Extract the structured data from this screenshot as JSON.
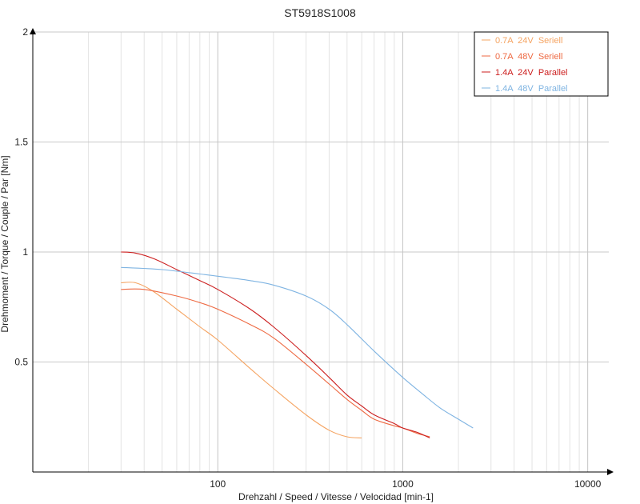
{
  "chart_data": {
    "type": "line",
    "title": "ST5918S1008",
    "xlabel": "Drehzahl / Speed / Vitesse / Velocidad [min-1]",
    "ylabel": "Drehmoment / Torque / Couple / Par [Nm]",
    "x_scale": "log",
    "xlim": [
      10,
      13000
    ],
    "ylim": [
      0,
      2
    ],
    "x_ticks": [
      100,
      1000,
      10000
    ],
    "x_tick_labels": [
      "100",
      "1000",
      "10000"
    ],
    "y_ticks": [
      0.5,
      1,
      1.5,
      2
    ],
    "y_tick_labels": [
      "0.5",
      "1",
      "1.5",
      "2"
    ],
    "grid": true,
    "legend_position": "top-right",
    "series": [
      {
        "name": "0.7A  24V  Seriell",
        "color": "#f5a462",
        "x": [
          30,
          36,
          45,
          60,
          80,
          100,
          150,
          200,
          300,
          400,
          500,
          600
        ],
        "y": [
          0.86,
          0.86,
          0.82,
          0.74,
          0.66,
          0.6,
          0.47,
          0.38,
          0.26,
          0.19,
          0.16,
          0.155
        ]
      },
      {
        "name": "0.7A  48V  Seriell",
        "color": "#ee6a43",
        "x": [
          30,
          40,
          60,
          80,
          100,
          150,
          200,
          300,
          400,
          500,
          600,
          700,
          900,
          1000,
          1200,
          1400
        ],
        "y": [
          0.83,
          0.83,
          0.8,
          0.77,
          0.74,
          0.67,
          0.61,
          0.49,
          0.4,
          0.33,
          0.28,
          0.24,
          0.21,
          0.2,
          0.175,
          0.16
        ]
      },
      {
        "name": "1.4A  24V  Parallel",
        "color": "#cc1f1f",
        "x": [
          30,
          36,
          45,
          60,
          80,
          100,
          150,
          200,
          300,
          400,
          500,
          600,
          700,
          900,
          1000,
          1200,
          1400
        ],
        "y": [
          1.0,
          0.995,
          0.97,
          0.92,
          0.87,
          0.83,
          0.74,
          0.66,
          0.53,
          0.43,
          0.35,
          0.3,
          0.26,
          0.22,
          0.2,
          0.18,
          0.155
        ]
      },
      {
        "name": "1.4A  48V  Parallel",
        "color": "#7fb4e2",
        "x": [
          30,
          50,
          80,
          100,
          150,
          200,
          300,
          400,
          500,
          700,
          1000,
          1300,
          1600,
          2000,
          2400
        ],
        "y": [
          0.93,
          0.92,
          0.9,
          0.89,
          0.87,
          0.85,
          0.8,
          0.74,
          0.67,
          0.55,
          0.43,
          0.35,
          0.29,
          0.24,
          0.2
        ]
      }
    ]
  }
}
